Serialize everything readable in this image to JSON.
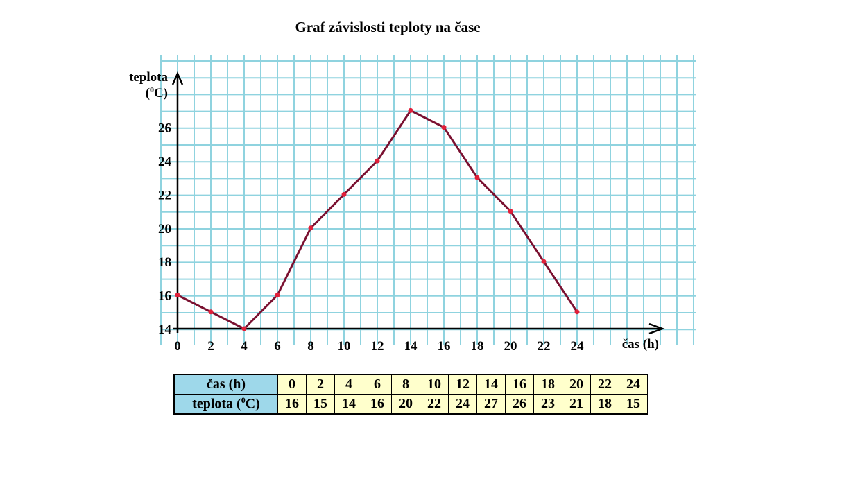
{
  "chart_data": {
    "type": "line",
    "title": "Graf závislosti teploty na čase",
    "ylabel_main": "teplota",
    "ylabel_unit_open": "(",
    "ylabel_unit_sup": "0",
    "ylabel_unit_close": "C)",
    "xlabel": "čas (h)",
    "x": [
      0,
      2,
      4,
      6,
      8,
      10,
      12,
      14,
      16,
      18,
      20,
      22,
      24
    ],
    "values": [
      16,
      15,
      14,
      16,
      20,
      22,
      24,
      27,
      26,
      23,
      21,
      18,
      15
    ],
    "x_ticks": [
      "0",
      "2",
      "4",
      "6",
      "8",
      "10",
      "12",
      "14",
      "16",
      "18",
      "20",
      "22",
      "24"
    ],
    "y_ticks": [
      "14",
      "16",
      "18",
      "20",
      "22",
      "24",
      "26"
    ],
    "xlim": [
      0,
      24
    ],
    "ylim": [
      14,
      27
    ],
    "grid": true,
    "colors": {
      "grid": "#8fd3df",
      "line": "#7a1030",
      "points": "#e0203a"
    }
  },
  "table": {
    "row1_label": "čas (h)",
    "row2_label_main": "teplota (",
    "row2_label_sup": "0",
    "row2_label_end": "C)",
    "row1_values": [
      "0",
      "2",
      "4",
      "6",
      "8",
      "10",
      "12",
      "14",
      "16",
      "18",
      "20",
      "22",
      "24"
    ],
    "row2_values": [
      "16",
      "15",
      "14",
      "16",
      "20",
      "22",
      "24",
      "27",
      "26",
      "23",
      "21",
      "18",
      "15"
    ],
    "colors": {
      "header": "#9ed8ea",
      "cells": "#ffffcc"
    }
  }
}
